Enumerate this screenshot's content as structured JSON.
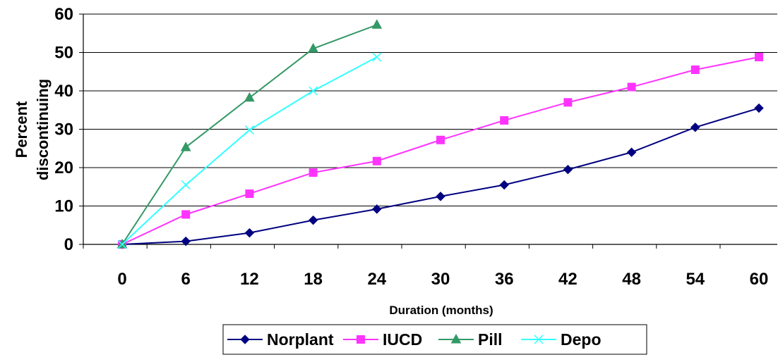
{
  "chart_data": {
    "type": "line",
    "title": "",
    "xlabel": "Duration (months)",
    "ylabel_lines": [
      "Percent",
      "discontinuing"
    ],
    "x": [
      0,
      6,
      12,
      18,
      24,
      30,
      36,
      42,
      48,
      54,
      60
    ],
    "ylim": [
      0,
      60
    ],
    "yticks": [
      0,
      10,
      20,
      30,
      40,
      50,
      60
    ],
    "grid": "horizontal",
    "legend_position": "bottom",
    "series": [
      {
        "name": "Norplant",
        "color": "#000080",
        "marker": "diamond",
        "values": [
          0,
          0.8,
          3,
          6.3,
          9.2,
          12.5,
          15.5,
          19.5,
          24,
          30.5,
          35.5
        ]
      },
      {
        "name": "IUCD",
        "color": "#FF33FF",
        "marker": "square",
        "values": [
          0,
          7.8,
          13.2,
          18.7,
          21.7,
          27.2,
          32.3,
          37,
          41,
          45.5,
          48.8
        ]
      },
      {
        "name": "Pill",
        "color": "#339966",
        "marker": "triangle",
        "values": [
          0,
          25.3,
          38.2,
          51,
          57.2,
          null,
          null,
          null,
          null,
          null,
          null
        ]
      },
      {
        "name": "Depo",
        "color": "#33FFFF",
        "marker": "x",
        "values": [
          0,
          15.5,
          29.8,
          40,
          48.8,
          null,
          null,
          null,
          null,
          null,
          null
        ]
      }
    ]
  }
}
